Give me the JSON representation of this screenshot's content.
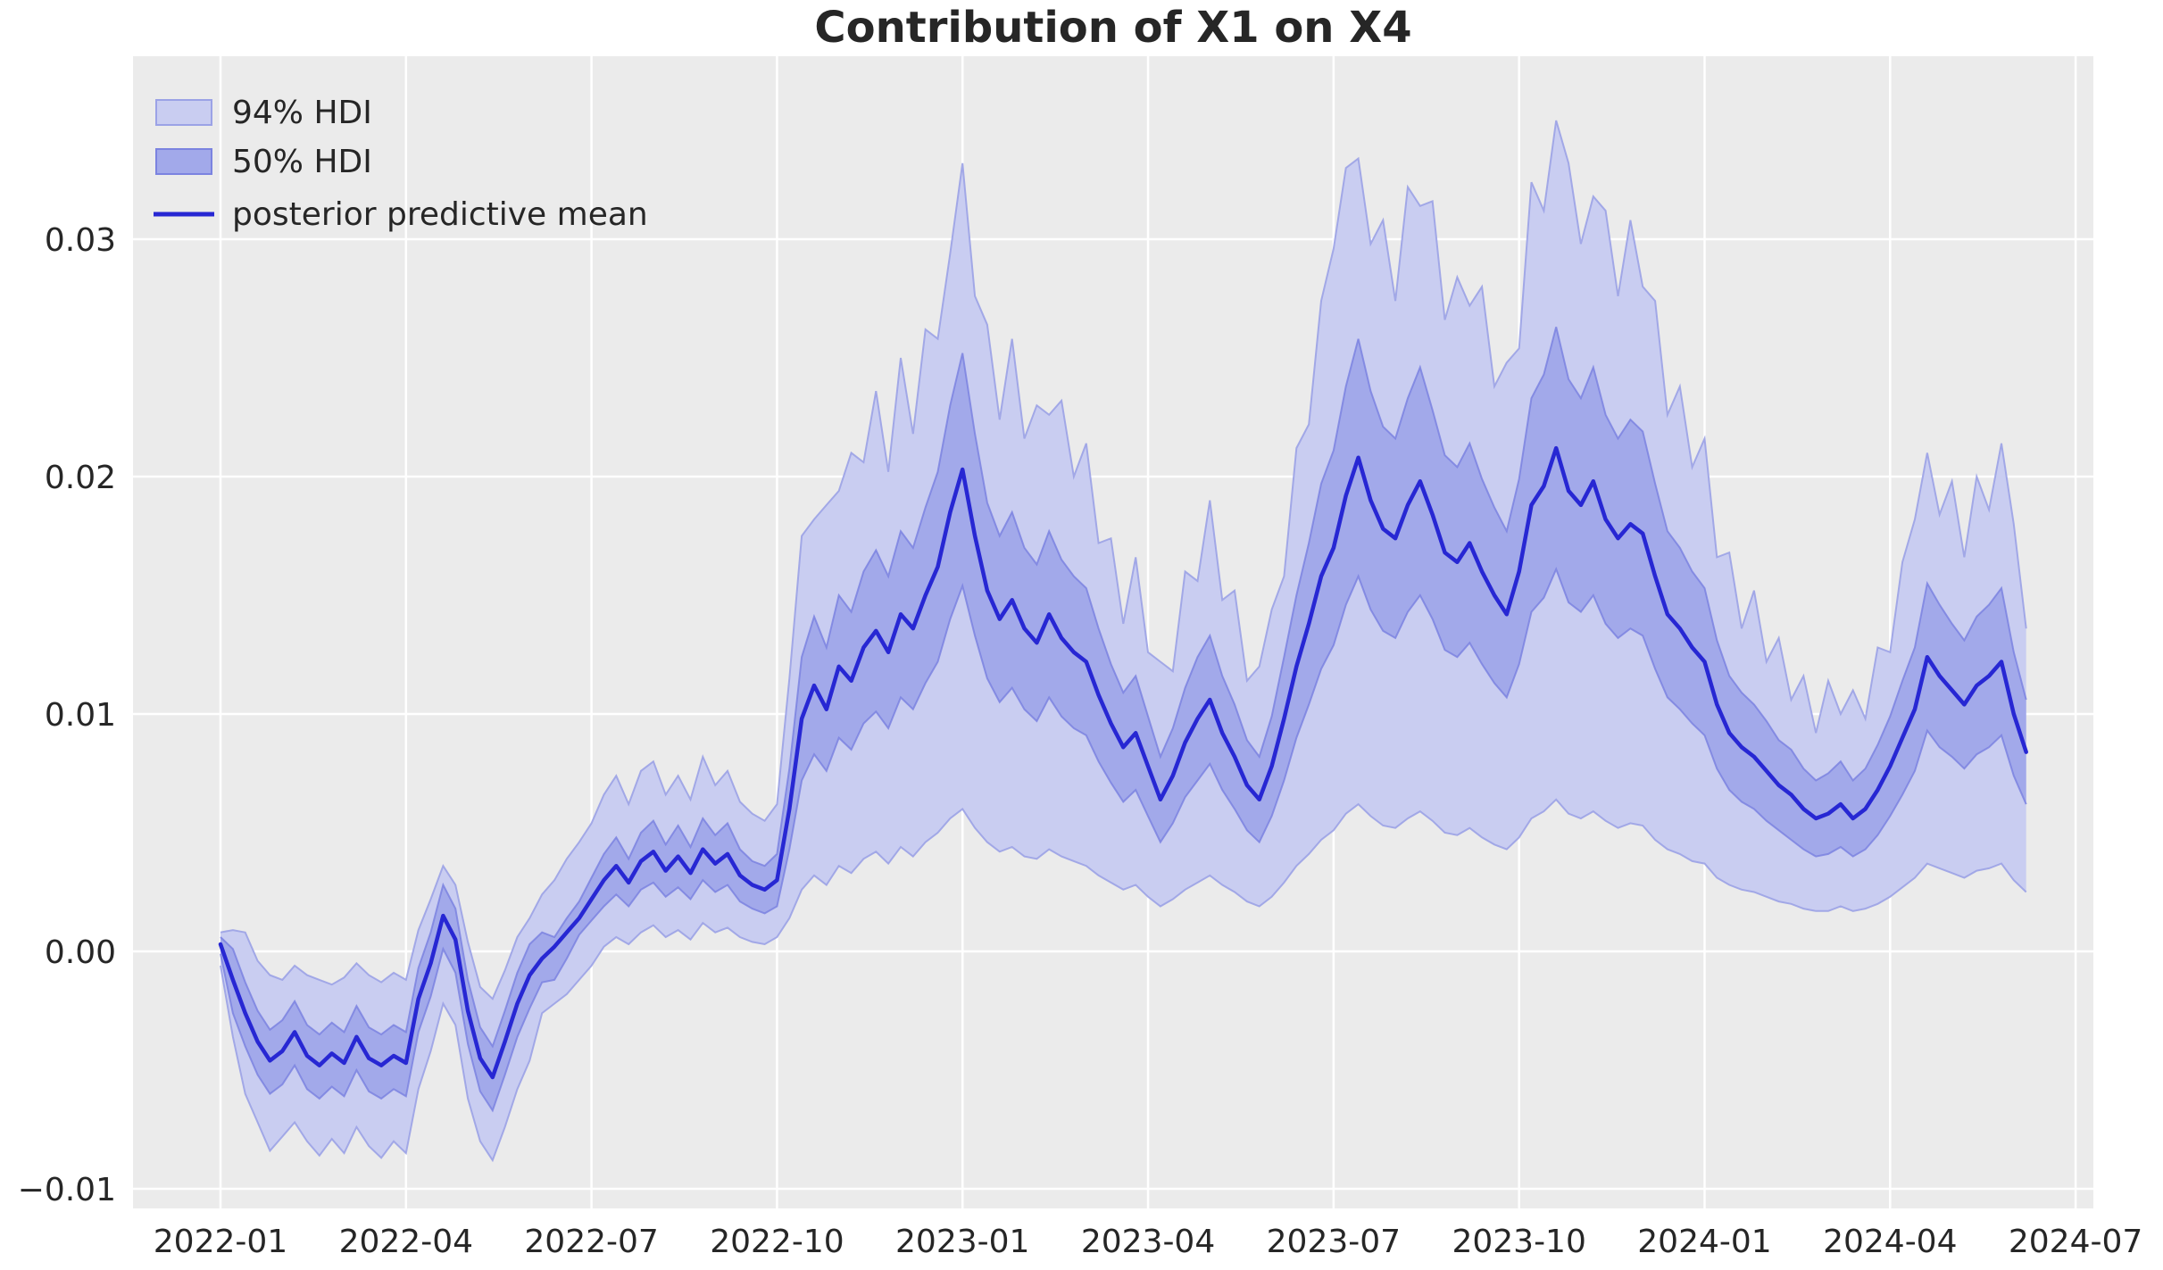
{
  "title": "Contribution of X1 on X4",
  "colors": {
    "figure_background": "#ffffff",
    "plot_background": "#ebebeb",
    "grid": "#ffffff",
    "hdi94_fill": "#c9cdf1",
    "hdi94_edge": "#9ba2e6",
    "hdi50_fill": "#a2a9ea",
    "hdi50_edge": "#7b83e0",
    "mean_line": "#2727d3",
    "text": "#262626"
  },
  "legend": {
    "position": "top-left",
    "items": [
      {
        "label": "94% HDI",
        "swatch": "band-light"
      },
      {
        "label": "50% HDI",
        "swatch": "band-medium"
      },
      {
        "label": "posterior predictive mean",
        "swatch": "line"
      }
    ]
  },
  "x_axis": {
    "tick_labels": [
      "2022-01",
      "2022-04",
      "2022-07",
      "2022-10",
      "2023-01",
      "2023-04",
      "2023-07",
      "2023-10",
      "2024-01",
      "2024-04",
      "2024-07"
    ],
    "tick_positions_months": [
      0,
      3,
      6,
      9,
      12,
      15,
      18,
      21,
      24,
      27,
      30
    ]
  },
  "y_axis": {
    "tick_labels": [
      "−0.01",
      "0.00",
      "0.01",
      "0.02",
      "0.03"
    ],
    "tick_values": [
      -10,
      0,
      10,
      20,
      30
    ]
  },
  "chart_data": {
    "type": "line",
    "subtype": "line-with-hdi-bands",
    "title": "Contribution of X1 on X4",
    "xlabel": "",
    "ylabel": "",
    "grid": true,
    "legend_position": "upper left",
    "x_epoch": "2022-01-01",
    "x_unit": "months since 2022-01-01",
    "x_start_months": 0,
    "x_step_months": 0.2,
    "xlim_months": [
      -1.41,
      30.28
    ],
    "values_scale": 0.001,
    "ylim": [
      -0.0108,
      0.0377
    ],
    "y_ticks": [
      -0.01,
      0.0,
      0.01,
      0.02,
      0.03
    ],
    "series": [
      {
        "name": "posterior predictive mean",
        "values": [
          0.3,
          -1.2,
          -2.6,
          -3.8,
          -4.6,
          -4.2,
          -3.4,
          -4.4,
          -4.8,
          -4.3,
          -4.7,
          -3.6,
          -4.5,
          -4.8,
          -4.4,
          -4.7,
          -2.0,
          -0.5,
          1.5,
          0.5,
          -2.5,
          -4.5,
          -5.3,
          -3.8,
          -2.2,
          -1.0,
          -0.3,
          0.2,
          0.8,
          1.4,
          2.2,
          3.0,
          3.6,
          2.9,
          3.8,
          4.2,
          3.4,
          4.0,
          3.3,
          4.3,
          3.7,
          4.1,
          3.2,
          2.8,
          2.6,
          3.0,
          6.0,
          9.8,
          11.2,
          10.2,
          12.0,
          11.4,
          12.8,
          13.5,
          12.6,
          14.2,
          13.6,
          15.0,
          16.2,
          18.5,
          20.3,
          17.5,
          15.2,
          14.0,
          14.8,
          13.6,
          13.0,
          14.2,
          13.2,
          12.6,
          12.2,
          10.8,
          9.6,
          8.6,
          9.2,
          7.8,
          6.4,
          7.4,
          8.8,
          9.8,
          10.6,
          9.2,
          8.2,
          7.0,
          6.4,
          7.8,
          9.8,
          12.0,
          13.8,
          15.8,
          17.0,
          19.2,
          20.8,
          19.0,
          17.8,
          17.4,
          18.8,
          19.8,
          18.4,
          16.8,
          16.4,
          17.2,
          16.0,
          15.0,
          14.2,
          16.0,
          18.8,
          19.6,
          21.2,
          19.4,
          18.8,
          19.8,
          18.2,
          17.4,
          18.0,
          17.6,
          15.8,
          14.2,
          13.6,
          12.8,
          12.2,
          10.4,
          9.2,
          8.6,
          8.2,
          7.6,
          7.0,
          6.6,
          6.0,
          5.6,
          5.8,
          6.2,
          5.6,
          6.0,
          6.8,
          7.8,
          9.0,
          10.2,
          12.4,
          11.6,
          11.0,
          10.4,
          11.2,
          11.6,
          12.2,
          10.0,
          8.4
        ]
      },
      {
        "name": "hdi_94_upper",
        "values": [
          0.8,
          0.9,
          0.8,
          -0.4,
          -1.0,
          -1.2,
          -0.6,
          -1.0,
          -1.2,
          -1.4,
          -1.1,
          -0.5,
          -1.0,
          -1.3,
          -0.9,
          -1.2,
          0.9,
          2.2,
          3.6,
          2.8,
          0.4,
          -1.5,
          -2.0,
          -0.8,
          0.6,
          1.4,
          2.4,
          3.0,
          3.9,
          4.6,
          5.4,
          6.6,
          7.4,
          6.2,
          7.6,
          8.0,
          6.6,
          7.4,
          6.4,
          8.2,
          7.0,
          7.6,
          6.3,
          5.8,
          5.5,
          6.2,
          11.5,
          17.5,
          18.2,
          18.8,
          19.4,
          21.0,
          20.6,
          23.6,
          20.2,
          25.0,
          21.8,
          26.2,
          25.8,
          29.4,
          33.2,
          27.6,
          26.4,
          22.4,
          25.8,
          21.6,
          23.0,
          22.6,
          23.2,
          20.0,
          21.4,
          17.2,
          17.4,
          13.8,
          16.6,
          12.6,
          12.2,
          11.8,
          16.0,
          15.6,
          19.0,
          14.8,
          15.2,
          11.4,
          12.0,
          14.4,
          15.8,
          21.2,
          22.2,
          27.4,
          29.6,
          33.0,
          33.4,
          29.8,
          30.8,
          27.4,
          32.2,
          31.4,
          31.6,
          26.6,
          28.4,
          27.2,
          28.0,
          23.8,
          24.8,
          25.4,
          32.4,
          31.2,
          35.0,
          33.2,
          29.8,
          31.8,
          31.2,
          27.6,
          30.8,
          28.0,
          27.4,
          22.6,
          23.8,
          20.4,
          21.6,
          16.6,
          16.8,
          13.6,
          15.2,
          12.2,
          13.2,
          10.6,
          11.6,
          9.2,
          11.4,
          10.0,
          11.0,
          9.8,
          12.8,
          12.6,
          16.4,
          18.2,
          21.0,
          18.4,
          19.8,
          16.6,
          20.0,
          18.6,
          21.4,
          18.0,
          13.6
        ]
      },
      {
        "name": "hdi_94_lower",
        "values": [
          -0.6,
          -3.6,
          -6.0,
          -7.2,
          -8.4,
          -7.8,
          -7.2,
          -8.0,
          -8.6,
          -7.9,
          -8.5,
          -7.4,
          -8.2,
          -8.7,
          -8.0,
          -8.5,
          -5.8,
          -4.2,
          -2.2,
          -3.1,
          -6.2,
          -8.0,
          -8.8,
          -7.4,
          -5.8,
          -4.6,
          -2.6,
          -2.2,
          -1.8,
          -1.2,
          -0.6,
          0.2,
          0.6,
          0.3,
          0.8,
          1.1,
          0.6,
          0.9,
          0.5,
          1.2,
          0.8,
          1.0,
          0.6,
          0.4,
          0.3,
          0.6,
          1.4,
          2.6,
          3.2,
          2.8,
          3.6,
          3.3,
          3.9,
          4.2,
          3.7,
          4.4,
          4.0,
          4.6,
          5.0,
          5.6,
          6.0,
          5.2,
          4.6,
          4.2,
          4.4,
          4.0,
          3.9,
          4.3,
          4.0,
          3.8,
          3.6,
          3.2,
          2.9,
          2.6,
          2.8,
          2.3,
          1.9,
          2.2,
          2.6,
          2.9,
          3.2,
          2.8,
          2.5,
          2.1,
          1.9,
          2.3,
          2.9,
          3.6,
          4.1,
          4.7,
          5.1,
          5.8,
          6.2,
          5.7,
          5.3,
          5.2,
          5.6,
          5.9,
          5.5,
          5.0,
          4.9,
          5.2,
          4.8,
          4.5,
          4.3,
          4.8,
          5.6,
          5.9,
          6.4,
          5.8,
          5.6,
          5.9,
          5.5,
          5.2,
          5.4,
          5.3,
          4.7,
          4.3,
          4.1,
          3.8,
          3.7,
          3.1,
          2.8,
          2.6,
          2.5,
          2.3,
          2.1,
          2.0,
          1.8,
          1.7,
          1.7,
          1.9,
          1.7,
          1.8,
          2.0,
          2.3,
          2.7,
          3.1,
          3.7,
          3.5,
          3.3,
          3.1,
          3.4,
          3.5,
          3.7,
          3.0,
          2.5
        ]
      },
      {
        "name": "hdi_50_upper",
        "values": [
          0.6,
          0.1,
          -1.3,
          -2.5,
          -3.3,
          -2.9,
          -2.1,
          -3.1,
          -3.5,
          -3.0,
          -3.4,
          -2.3,
          -3.2,
          -3.5,
          -3.1,
          -3.4,
          -0.7,
          0.8,
          2.8,
          1.8,
          -1.2,
          -3.2,
          -4.0,
          -2.5,
          -0.9,
          0.3,
          0.8,
          0.6,
          1.4,
          2.1,
          3.1,
          4.1,
          4.8,
          3.9,
          5.0,
          5.5,
          4.5,
          5.3,
          4.4,
          5.6,
          4.9,
          5.4,
          4.3,
          3.8,
          3.6,
          4.1,
          7.7,
          12.4,
          14.1,
          12.8,
          15.0,
          14.3,
          16.0,
          16.9,
          15.8,
          17.7,
          17.0,
          18.7,
          20.2,
          23.0,
          25.2,
          21.8,
          18.9,
          17.5,
          18.5,
          17.0,
          16.3,
          17.7,
          16.5,
          15.8,
          15.3,
          13.6,
          12.1,
          10.9,
          11.6,
          9.9,
          8.2,
          9.4,
          11.1,
          12.4,
          13.3,
          11.6,
          10.4,
          8.9,
          8.2,
          9.9,
          12.4,
          15.0,
          17.2,
          19.7,
          21.1,
          23.8,
          25.8,
          23.6,
          22.1,
          21.6,
          23.3,
          24.6,
          22.8,
          20.9,
          20.4,
          21.4,
          19.9,
          18.7,
          17.7,
          19.9,
          23.3,
          24.3,
          26.3,
          24.1,
          23.3,
          24.6,
          22.6,
          21.6,
          22.4,
          21.9,
          19.7,
          17.7,
          17.0,
          16.0,
          15.3,
          13.1,
          11.6,
          10.9,
          10.4,
          9.7,
          8.9,
          8.5,
          7.7,
          7.2,
          7.5,
          8.0,
          7.2,
          7.7,
          8.7,
          9.9,
          11.4,
          12.8,
          15.5,
          14.6,
          13.8,
          13.1,
          14.1,
          14.6,
          15.3,
          12.6,
          10.6
        ]
      },
      {
        "name": "hdi_50_lower",
        "values": [
          -0.1,
          -2.6,
          -4.0,
          -5.2,
          -6.0,
          -5.6,
          -4.8,
          -5.8,
          -6.2,
          -5.7,
          -6.1,
          -5.0,
          -5.9,
          -6.2,
          -5.8,
          -6.1,
          -3.4,
          -1.9,
          0.1,
          -0.9,
          -3.9,
          -5.9,
          -6.7,
          -5.2,
          -3.6,
          -2.4,
          -1.3,
          -1.2,
          -0.3,
          0.7,
          1.3,
          1.9,
          2.4,
          1.9,
          2.6,
          2.9,
          2.3,
          2.7,
          2.2,
          3.0,
          2.5,
          2.8,
          2.1,
          1.8,
          1.6,
          1.9,
          4.3,
          7.2,
          8.3,
          7.6,
          9.0,
          8.5,
          9.6,
          10.1,
          9.4,
          10.7,
          10.2,
          11.3,
          12.2,
          14.0,
          15.4,
          13.3,
          11.5,
          10.5,
          11.1,
          10.2,
          9.7,
          10.7,
          9.9,
          9.4,
          9.1,
          8.0,
          7.1,
          6.3,
          6.8,
          5.7,
          4.6,
          5.4,
          6.5,
          7.2,
          7.9,
          6.8,
          6.0,
          5.1,
          4.6,
          5.7,
          7.2,
          9.0,
          10.4,
          11.9,
          12.9,
          14.6,
          15.8,
          14.4,
          13.5,
          13.2,
          14.3,
          15.0,
          14.0,
          12.7,
          12.4,
          13.0,
          12.1,
          11.3,
          10.7,
          12.1,
          14.3,
          14.9,
          16.1,
          14.7,
          14.3,
          15.0,
          13.8,
          13.2,
          13.6,
          13.3,
          11.9,
          10.7,
          10.2,
          9.6,
          9.1,
          7.7,
          6.8,
          6.3,
          6.0,
          5.5,
          5.1,
          4.7,
          4.3,
          4.0,
          4.1,
          4.4,
          4.0,
          4.3,
          4.9,
          5.7,
          6.6,
          7.6,
          9.3,
          8.6,
          8.2,
          7.7,
          8.3,
          8.6,
          9.1,
          7.4,
          6.2
        ]
      }
    ]
  }
}
